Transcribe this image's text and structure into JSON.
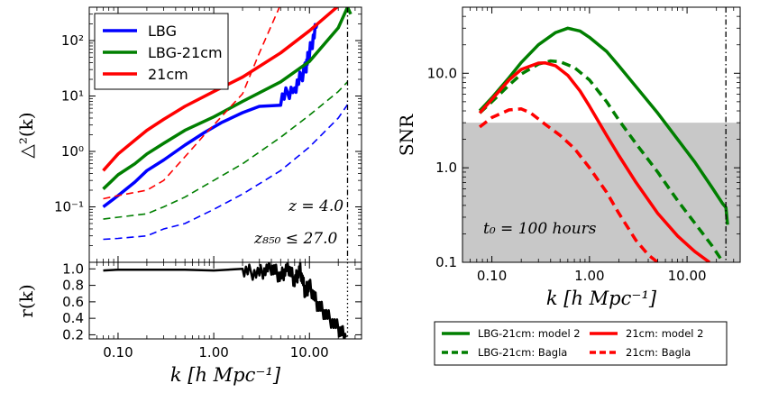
{
  "chart_data": [
    {
      "id": "power-spectrum",
      "type": "line",
      "xscale": "log",
      "yscale": "log",
      "xlim": [
        0.05,
        35
      ],
      "ylim": [
        0.01,
        400
      ],
      "ylabel": "△²(k)",
      "xticks": [
        0.1,
        1,
        10
      ],
      "xtick_labels": [
        "0.10",
        "1.00",
        "10.00"
      ],
      "yticks": [
        0.1,
        1,
        10,
        100
      ],
      "ytick_labels": [
        "10⁻¹",
        "10⁰",
        "10¹",
        "10²"
      ],
      "vline_x": 25,
      "annotations": [
        "z = 4.0",
        "z₈₅₀ ≤ 27.0"
      ],
      "legend_position": "upper-left",
      "series": [
        {
          "name": "LBG",
          "color": "#0000ff",
          "style": "solid",
          "legend": true,
          "x": [
            0.07,
            0.1,
            0.15,
            0.2,
            0.3,
            0.5,
            0.8,
            1.2,
            2,
            3,
            5,
            7,
            9,
            10,
            12
          ],
          "y": [
            0.1,
            0.16,
            0.28,
            0.45,
            0.7,
            1.3,
            2.2,
            3.3,
            5,
            6.5,
            9,
            14,
            30,
            60,
            200
          ]
        },
        {
          "name": "LBG-21cm",
          "color": "#007f00",
          "style": "solid",
          "legend": true,
          "x": [
            0.07,
            0.1,
            0.15,
            0.2,
            0.3,
            0.5,
            1,
            2,
            5,
            10,
            20,
            25,
            27
          ],
          "y": [
            0.21,
            0.38,
            0.6,
            0.9,
            1.4,
            2.4,
            4.2,
            8,
            18,
            42,
            170,
            400,
            300
          ]
        },
        {
          "name": "21cm",
          "color": "#ff0000",
          "style": "solid",
          "legend": true,
          "x": [
            0.07,
            0.1,
            0.15,
            0.2,
            0.3,
            0.5,
            1,
            2,
            5,
            10,
            20
          ],
          "y": [
            0.45,
            0.9,
            1.6,
            2.4,
            3.8,
            6.5,
            12,
            22,
            60,
            150,
            420
          ]
        },
        {
          "name": "21cm-dashed",
          "color": "#ff0000",
          "style": "dashed",
          "legend": false,
          "x": [
            0.07,
            0.1,
            0.2,
            0.3,
            0.5,
            0.8,
            1,
            2,
            3,
            5
          ],
          "y": [
            0.14,
            0.16,
            0.2,
            0.3,
            0.8,
            2,
            3,
            11,
            60,
            450
          ]
        },
        {
          "name": "LBG-21cm-dashed",
          "color": "#007f00",
          "style": "dashed",
          "legend": false,
          "x": [
            0.07,
            0.1,
            0.2,
            0.3,
            0.5,
            1,
            2,
            5,
            10,
            20,
            25
          ],
          "y": [
            0.06,
            0.065,
            0.075,
            0.1,
            0.15,
            0.3,
            0.6,
            1.8,
            4.5,
            12,
            18
          ]
        },
        {
          "name": "LBG-dashed",
          "color": "#0000ff",
          "style": "dashed",
          "legend": false,
          "x": [
            0.07,
            0.1,
            0.2,
            0.3,
            0.5,
            1,
            2,
            5,
            10,
            20,
            25
          ],
          "y": [
            0.026,
            0.027,
            0.03,
            0.04,
            0.05,
            0.09,
            0.17,
            0.45,
            1.2,
            4,
            7
          ]
        }
      ]
    },
    {
      "id": "cross-correlation",
      "type": "line",
      "xscale": "log",
      "xlim": [
        0.05,
        35
      ],
      "ylim": [
        0.15,
        1.08
      ],
      "xlabel": "k [h Mpc⁻¹]",
      "ylabel": "r(k)",
      "xticks": [
        0.1,
        1,
        10
      ],
      "xtick_labels": [
        "0.10",
        "1.00",
        "10.00"
      ],
      "yticks": [
        0.2,
        0.4,
        0.6,
        0.8,
        1.0
      ],
      "ytick_labels": [
        "0.2",
        "0.4",
        "0.6",
        "0.8",
        "1.0"
      ],
      "vline_x": 25,
      "series": [
        {
          "name": "r(k)",
          "color": "#000000",
          "style": "solid",
          "x": [
            0.07,
            0.1,
            0.2,
            0.5,
            1,
            2,
            3,
            4,
            5,
            6,
            7,
            8,
            9,
            10,
            12,
            15,
            20,
            24
          ],
          "y": [
            0.98,
            0.99,
            0.99,
            0.99,
            0.98,
            0.97,
            0.95,
            1.02,
            0.9,
            1.03,
            0.85,
            1.0,
            0.72,
            0.8,
            0.58,
            0.44,
            0.28,
            0.17
          ]
        }
      ]
    },
    {
      "id": "snr",
      "type": "line",
      "xscale": "log",
      "yscale": "log",
      "xlim": [
        0.05,
        35
      ],
      "ylim": [
        0.1,
        50
      ],
      "xlabel": "k [h Mpc⁻¹]",
      "ylabel": "SNR",
      "xticks": [
        0.1,
        1,
        10
      ],
      "xtick_labels": [
        "0.10",
        "1.00",
        "10.00"
      ],
      "yticks": [
        0.1,
        1,
        10
      ],
      "ytick_labels": [
        "0.1",
        "1.0",
        "10.0"
      ],
      "shaded_below": 3,
      "vline_x": 25,
      "annotation": "t₀ = 100 hours",
      "series": [
        {
          "name": "LBG-21cm: model 2",
          "color": "#007f00",
          "style": "solid",
          "x": [
            0.075,
            0.1,
            0.15,
            0.2,
            0.3,
            0.45,
            0.6,
            0.8,
            1,
            1.5,
            2,
            3,
            5,
            8,
            12,
            18,
            23,
            25,
            26
          ],
          "y": [
            4,
            5.5,
            9,
            13,
            20,
            27,
            30,
            28,
            24,
            17,
            12,
            7.2,
            3.8,
            2,
            1.15,
            0.62,
            0.42,
            0.38,
            0.25
          ]
        },
        {
          "name": "LBG-21cm: Bagla",
          "color": "#007f00",
          "style": "dashed",
          "x": [
            0.075,
            0.1,
            0.15,
            0.2,
            0.3,
            0.4,
            0.5,
            0.7,
            1,
            1.5,
            2,
            3,
            5,
            8,
            12,
            18,
            22,
            24
          ],
          "y": [
            3.8,
            5,
            7.5,
            9.8,
            12.5,
            13.5,
            13.2,
            11.5,
            8.5,
            5,
            3.2,
            1.8,
            0.9,
            0.45,
            0.26,
            0.15,
            0.11,
            0.1
          ]
        },
        {
          "name": "21cm: model 2",
          "color": "#ff0000",
          "style": "solid",
          "x": [
            0.075,
            0.1,
            0.15,
            0.2,
            0.3,
            0.35,
            0.45,
            0.6,
            0.8,
            1,
            1.5,
            2,
            3,
            5,
            8,
            12,
            17
          ],
          "y": [
            3.8,
            5.3,
            8.5,
            11,
            12.8,
            12.9,
            12,
            9.5,
            6.5,
            4.5,
            2.2,
            1.35,
            0.7,
            0.33,
            0.19,
            0.13,
            0.1
          ]
        },
        {
          "name": "21cm: Bagla",
          "color": "#ff0000",
          "style": "dashed",
          "x": [
            0.075,
            0.1,
            0.15,
            0.2,
            0.25,
            0.35,
            0.5,
            0.7,
            1,
            1.5,
            2,
            3,
            4,
            5
          ],
          "y": [
            2.7,
            3.4,
            4.1,
            4.2,
            3.8,
            2.9,
            2.2,
            1.6,
            1.0,
            0.55,
            0.33,
            0.17,
            0.12,
            0.1
          ]
        }
      ]
    }
  ],
  "legend_left": [
    "LBG",
    "LBG-21cm",
    "21cm"
  ],
  "legend_right": [
    "LBG-21cm: model 2",
    "21cm: model 2",
    "LBG-21cm: Bagla",
    "21cm: Bagla"
  ],
  "labels": {
    "left_ylabel_top": "△²(k)",
    "left_ylabel_bottom": "r(k)",
    "left_xlabel": "k [h Mpc⁻¹]",
    "right_ylabel": "SNR",
    "right_xlabel": "k [h Mpc⁻¹]",
    "z_annotation": "z = 4.0",
    "zmag_annotation": "z₈₅₀ ≤ 27.0",
    "t0_annotation": "t₀ = 100 hours"
  }
}
